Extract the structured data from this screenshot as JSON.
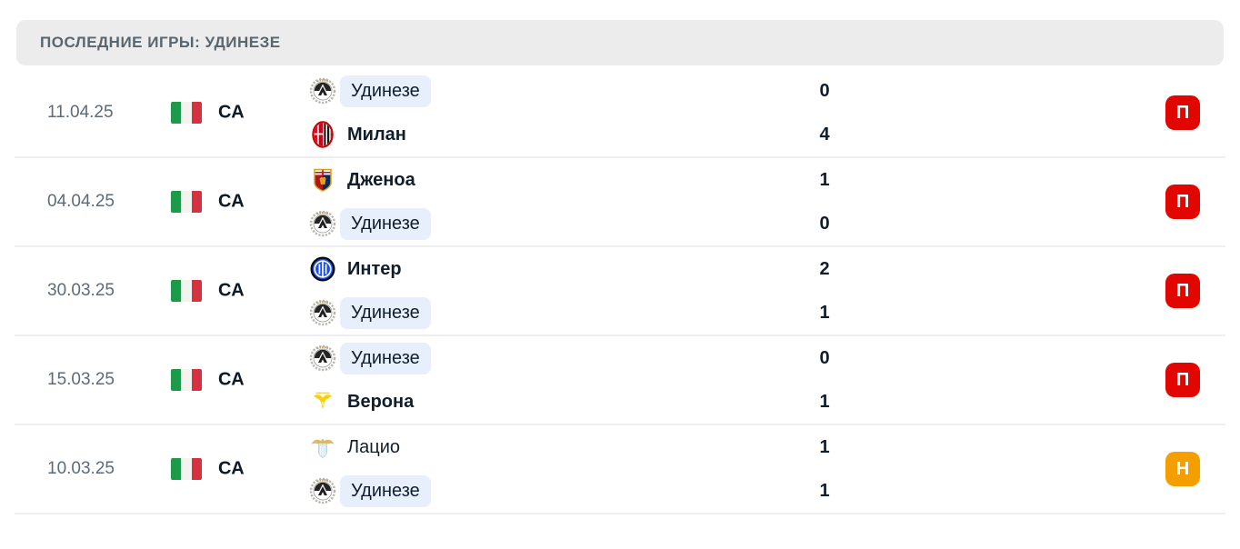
{
  "header": {
    "title": "ПОСЛЕДНИЕ ИГРЫ: УДИНЕЗЕ"
  },
  "result_types": {
    "loss": {
      "label": "П",
      "color": "#e10600"
    },
    "draw": {
      "label": "Н",
      "color": "#f59e00"
    }
  },
  "matches": [
    {
      "date": "11.04.25",
      "league": "СА",
      "country_flag": "italy-flag",
      "home": {
        "name": "Удинезе",
        "logo": "udinese",
        "score": "0",
        "highlight": true,
        "bold": false
      },
      "away": {
        "name": "Милан",
        "logo": "milan",
        "score": "4",
        "highlight": false,
        "bold": true
      },
      "result": "loss"
    },
    {
      "date": "04.04.25",
      "league": "СА",
      "country_flag": "italy-flag",
      "home": {
        "name": "Дженоа",
        "logo": "genoa",
        "score": "1",
        "highlight": false,
        "bold": true
      },
      "away": {
        "name": "Удинезе",
        "logo": "udinese",
        "score": "0",
        "highlight": true,
        "bold": false
      },
      "result": "loss"
    },
    {
      "date": "30.03.25",
      "league": "СА",
      "country_flag": "italy-flag",
      "home": {
        "name": "Интер",
        "logo": "inter",
        "score": "2",
        "highlight": false,
        "bold": true
      },
      "away": {
        "name": "Удинезе",
        "logo": "udinese",
        "score": "1",
        "highlight": true,
        "bold": false
      },
      "result": "loss"
    },
    {
      "date": "15.03.25",
      "league": "СА",
      "country_flag": "italy-flag",
      "home": {
        "name": "Удинезе",
        "logo": "udinese",
        "score": "0",
        "highlight": true,
        "bold": false
      },
      "away": {
        "name": "Верона",
        "logo": "verona",
        "score": "1",
        "highlight": false,
        "bold": true
      },
      "result": "loss"
    },
    {
      "date": "10.03.25",
      "league": "СА",
      "country_flag": "italy-flag",
      "home": {
        "name": "Лацио",
        "logo": "lazio",
        "score": "1",
        "highlight": false,
        "bold": false
      },
      "away": {
        "name": "Удинезе",
        "logo": "udinese",
        "score": "1",
        "highlight": true,
        "bold": false
      },
      "result": "draw"
    }
  ]
}
